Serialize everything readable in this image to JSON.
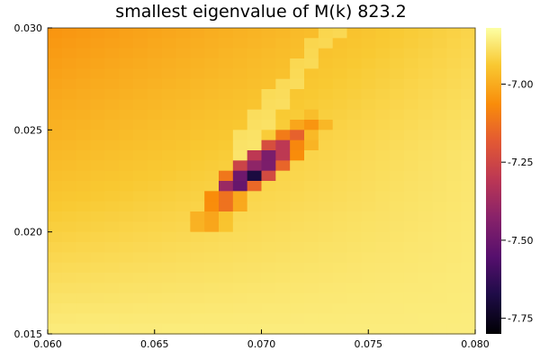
{
  "chart_data": {
    "type": "heatmap",
    "title": "smallest eigenvalue of M(k) 823.2",
    "xlabel": "",
    "ylabel": "",
    "xlim": [
      0.06,
      0.08
    ],
    "ylim": [
      0.015,
      0.03
    ],
    "x_ticks": [
      "0.060",
      "0.065",
      "0.070",
      "0.075",
      "0.080"
    ],
    "y_ticks": [
      "0.015",
      "0.020",
      "0.025",
      "0.030"
    ],
    "colorbar": {
      "colormap": "inferno",
      "range": [
        -7.8,
        -6.82
      ],
      "ticks": [
        "-7.75",
        "-7.50",
        "-7.25",
        "-7.00"
      ]
    },
    "grid_size": [
      30,
      30
    ],
    "background_field": "values rise from about -7.05 at the top-left to about -6.85 at the bottom and top-right",
    "ridge_values": [
      {
        "x": 0.0675,
        "y": 0.0205,
        "value": -7.05
      },
      {
        "x": 0.0682,
        "y": 0.0215,
        "value": -7.2
      },
      {
        "x": 0.0688,
        "y": 0.0223,
        "value": -7.55
      },
      {
        "x": 0.0695,
        "y": 0.0229,
        "value": -7.8
      },
      {
        "x": 0.0702,
        "y": 0.0235,
        "value": -7.65
      },
      {
        "x": 0.0708,
        "y": 0.024,
        "value": -7.45
      },
      {
        "x": 0.0715,
        "y": 0.0246,
        "value": -7.2
      },
      {
        "x": 0.0722,
        "y": 0.0252,
        "value": -7.05
      }
    ],
    "grid": false
  }
}
